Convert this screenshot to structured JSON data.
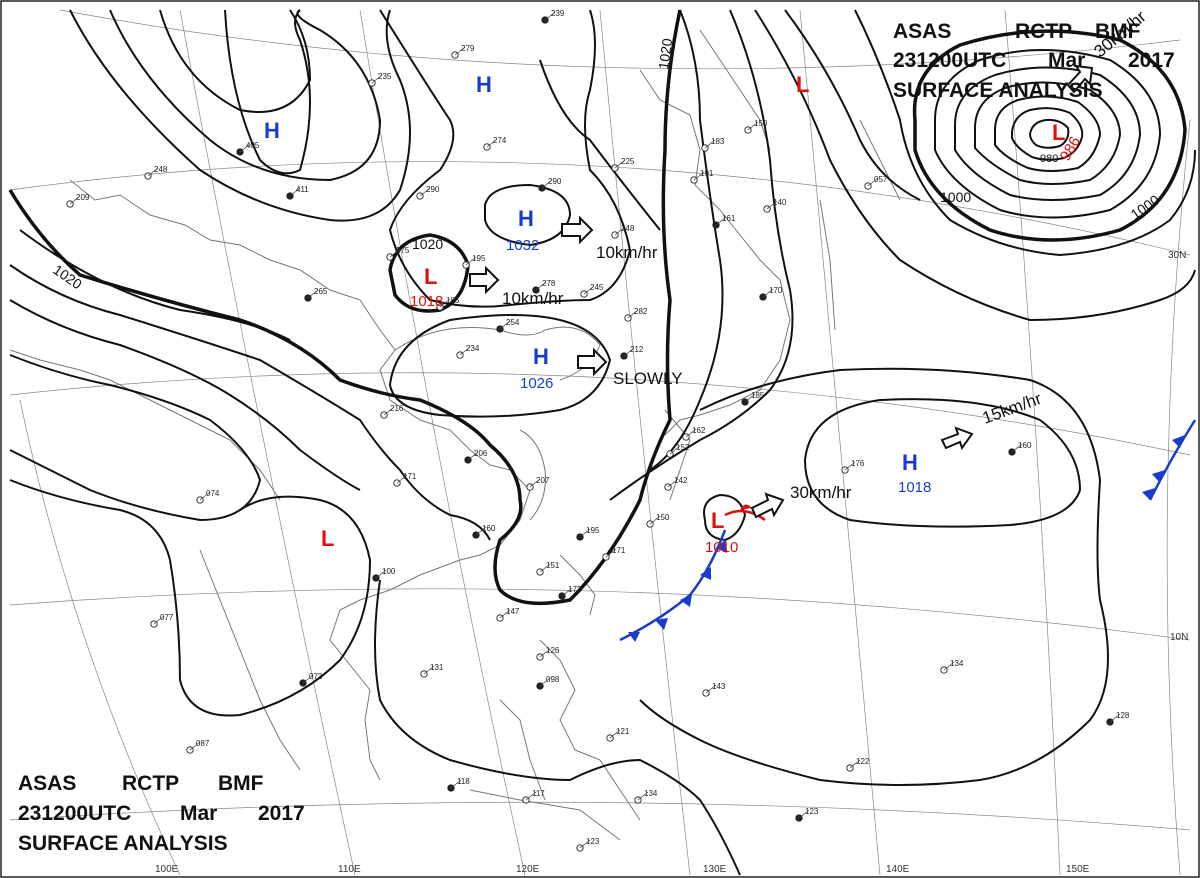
{
  "header_top": {
    "line1": [
      "ASAS",
      "RCTP",
      "BMF"
    ],
    "line2": [
      "231200UTC",
      "Mar",
      "2017"
    ],
    "line3": "SURFACE ANALYSIS"
  },
  "header_bottom": {
    "line1": [
      "ASAS",
      "RCTP",
      "BMF"
    ],
    "line2": [
      "231200UTC",
      "Mar",
      "2017"
    ],
    "line3": "SURFACE ANALYSIS"
  },
  "colors": {
    "high": "#1a3ccc",
    "low": "#e01010",
    "isobar": "#111111",
    "coast": "#777777",
    "cold_front": "#1a3ccc",
    "warm_front": "#e01010"
  },
  "pressure_systems": [
    {
      "id": "h-north-1",
      "type": "H",
      "value": ""
    },
    {
      "id": "h-north-2",
      "type": "H",
      "value": ""
    },
    {
      "id": "h-1032",
      "type": "H",
      "value": "1032"
    },
    {
      "id": "h-1026",
      "type": "H",
      "value": "1026"
    },
    {
      "id": "h-1018",
      "type": "H",
      "value": "1018"
    },
    {
      "id": "l-1018",
      "type": "L",
      "value": "1018"
    },
    {
      "id": "l-1010",
      "type": "L",
      "value": "1010"
    },
    {
      "id": "l-986",
      "type": "L",
      "value": "986"
    },
    {
      "id": "l-north",
      "type": "L",
      "value": ""
    },
    {
      "id": "l-west",
      "type": "L",
      "value": ""
    }
  ],
  "movements": [
    {
      "id": "move-1032",
      "text": "10km/hr"
    },
    {
      "id": "move-1018",
      "text": "10km/hr"
    },
    {
      "id": "move-1026",
      "text": "SLOWLY"
    },
    {
      "id": "move-1010",
      "text": "30km/hr"
    },
    {
      "id": "move-east-h",
      "text": "15km/hr"
    },
    {
      "id": "move-986",
      "text": "30km/hr"
    }
  ],
  "isobar_labels": [
    "1020",
    "1020",
    "1020",
    "1000",
    "1000",
    "980"
  ],
  "latitude_labels": [
    "30N",
    "10N"
  ],
  "longitude_labels": [
    "100E",
    "110E",
    "120E",
    "130E",
    "140E",
    "150E"
  ],
  "stations": [
    {
      "v": "239"
    },
    {
      "v": "279"
    },
    {
      "v": "235"
    },
    {
      "v": "405"
    },
    {
      "v": "248"
    },
    {
      "v": "209"
    },
    {
      "v": "411"
    },
    {
      "v": "290"
    },
    {
      "v": "274"
    },
    {
      "v": "290"
    },
    {
      "v": "225"
    },
    {
      "v": "275"
    },
    {
      "v": "265"
    },
    {
      "v": "195"
    },
    {
      "v": "185"
    },
    {
      "v": "278"
    },
    {
      "v": "248"
    },
    {
      "v": "245"
    },
    {
      "v": "254"
    },
    {
      "v": "234"
    },
    {
      "v": "282"
    },
    {
      "v": "212"
    },
    {
      "v": "183"
    },
    {
      "v": "191"
    },
    {
      "v": "161"
    },
    {
      "v": "140"
    },
    {
      "v": "150"
    },
    {
      "v": "170"
    },
    {
      "v": "057"
    },
    {
      "v": "216"
    },
    {
      "v": "206"
    },
    {
      "v": "207"
    },
    {
      "v": "171"
    },
    {
      "v": "160"
    },
    {
      "v": "142"
    },
    {
      "v": "150"
    },
    {
      "v": "195"
    },
    {
      "v": "171"
    },
    {
      "v": "151"
    },
    {
      "v": "172"
    },
    {
      "v": "147"
    },
    {
      "v": "176"
    },
    {
      "v": "160"
    },
    {
      "v": "131"
    },
    {
      "v": "126"
    },
    {
      "v": "098"
    },
    {
      "v": "143"
    },
    {
      "v": "134"
    },
    {
      "v": "128"
    },
    {
      "v": "122"
    },
    {
      "v": "121"
    },
    {
      "v": "118"
    },
    {
      "v": "117"
    },
    {
      "v": "134"
    },
    {
      "v": "123"
    },
    {
      "v": "123"
    },
    {
      "v": "087"
    },
    {
      "v": "073"
    },
    {
      "v": "077"
    },
    {
      "v": "074"
    },
    {
      "v": "100"
    },
    {
      "v": "162"
    },
    {
      "v": "152"
    },
    {
      "v": "185"
    }
  ]
}
